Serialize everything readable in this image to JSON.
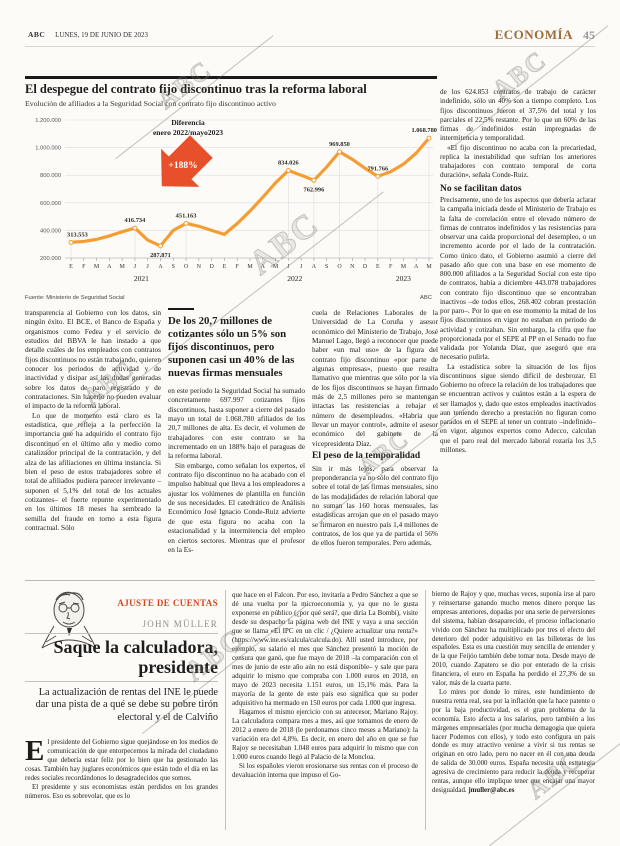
{
  "header": {
    "paper": "ABC",
    "date": "LUNES, 19 DE JUNIO DE 2023",
    "section": "ECONOMÍA",
    "page": "45",
    "section_color": "#9C6F3F"
  },
  "watermark": {
    "text": "ABC"
  },
  "chart_data": {
    "type": "line",
    "title": "El despegue del contrato fijo discontinuo tras la reforma laboral",
    "subtitle": "Evolución de afiliados a la Seguridad Social con contrato fijo discontinuo activo",
    "source": "Fuente: Ministerio de Seguridad Social",
    "credit": "ABC",
    "line_color": "#F59D33",
    "arrow_color": "#E8502B",
    "ylim": [
      200000,
      1200000
    ],
    "yticks": [
      "1.200.000",
      "1.000.000",
      "800.000",
      "600.000",
      "400.000",
      "200.000"
    ],
    "months": [
      "E",
      "F",
      "M",
      "A",
      "M",
      "J",
      "J",
      "A",
      "S",
      "O",
      "N",
      "D",
      "E",
      "F",
      "M",
      "A",
      "M",
      "J",
      "J",
      "A",
      "S",
      "O",
      "N",
      "D",
      "E",
      "F",
      "M",
      "A",
      "M"
    ],
    "values": [
      313553,
      320000,
      335000,
      360000,
      390000,
      416734,
      330000,
      287871,
      400000,
      451163,
      430000,
      400000,
      371000,
      450000,
      540000,
      640000,
      745000,
      834026,
      800000,
      762996,
      860000,
      969850,
      915000,
      850000,
      791766,
      825000,
      880000,
      960000,
      1068780
    ],
    "years": [
      {
        "label": "2021",
        "start": 0,
        "end": 11
      },
      {
        "label": "2022",
        "start": 12,
        "end": 23
      },
      {
        "label": "2023",
        "start": 24,
        "end": 28
      }
    ],
    "labeled_points": [
      {
        "i": 0,
        "label": "313.553",
        "pos": "above"
      },
      {
        "i": 5,
        "label": "416.734",
        "pos": "above"
      },
      {
        "i": 7,
        "label": "287.871",
        "pos": "below"
      },
      {
        "i": 9,
        "label": "451.163",
        "pos": "above"
      },
      {
        "i": 17,
        "label": "834.026",
        "pos": "above"
      },
      {
        "i": 19,
        "label": "762.996",
        "pos": "below"
      },
      {
        "i": 21,
        "label": "969.850",
        "pos": "above"
      },
      {
        "i": 24,
        "label": "791.766",
        "pos": "above"
      },
      {
        "i": 28,
        "label": "1.068.780",
        "pos": "above"
      }
    ],
    "annotation": {
      "title": "Diferencia",
      "subtitle": "enero 2022/mayo2023",
      "value": "+188%"
    }
  },
  "article": {
    "col1": {
      "p1": "transparencia al Gobierno con los datos, sin ningún éxito. El BCE, el Banco de España y organismos como Fedea y el servicio de estudios del BBVA le han instado a que detalle cuáles de los empleados con contratos fijos discontinuos no están trabajando, quieren conocer los periodos de actividad y de inactividad y disipar así las dudas generadas sobre los datos de paro registrado y de contrataciones. Sin hacerlo no pueden evaluar el impacto de la reforma laboral.",
      "p2": "Lo que de momento está claro es la estadística, que refleja a la perfección la importancia que ha adquirido el contrato fijo discontinuo en el último año y medio como catalizador principal de la contratación, y del alza de las afiliaciones en última instancia. Si bien el peso de estos trabajadores sobre el total de afiliados pudiera parecer irrelevante –suponen el 5,1% del total de los actuales cotizantes– el fuerte repunte experimentado en los últimos 18 meses ha sembrado la semilla del fraude en torno a esta figura contractual. Sólo"
    },
    "col2": {
      "quote": "De los 20,7 millones de cotizantes sólo un 5% son fijos discontinuos, pero suponen casi un 40% de las nuevas firmas mensuales",
      "p1": "en este periodo la Seguridad Social ha sumado concretamente 697.997 cotizantes fijos discontinuos, hasta suponer a cierre del pasado mayo un total de 1.068.780 afiliados de los 20,7 millones de alta. Es decir, el volumen de trabajadores con este contrato se ha incrementado en un 188% bajo el paraguas de la reforma laboral.",
      "p2": "Sin embargo, como señalan los expertos, el contrato fijo discontinuo no ha acabado con el impulso habitual que lleva a los empleadores a ajustar los volúmenes de plantilla en función de sus necesidades. El catedrático de Análisis Económico José Ignacio Conde-Ruiz advierte de que esta figura no acaba con la estacionalidad y la intermitencia del empleo en ciertos sectores. Mientras que el profesor en la Es-"
    },
    "col3": {
      "p1": "cuela de Relaciones Laborales de la Universidad de La Coruña y asesor económico del Ministerio de Trabajo, José Manuel Lago, llegó a reconocer que puede haber «un mal uso» de la figura del contrato fijo discontinuo «por parte de algunas empresas», puesto que resulta llamativo que mientras que sólo por la vía de los fijos discontinuos se hayan firmado más de 2,5 millones pero se mantengan intactas las resistencias a rebajar el número de desempleados. «Habría que llevar un mayor control», admite el asesor económico del gabinete de la vicepresidenta Díaz.",
      "subhead": "El peso de la temporalidad",
      "p2": "Sin ir más lejos, para observar la preponderancia ya no sólo del contrato fijo sobre el total de las firmas mensuales, sino de las modalidades de relación laboral que no suman las 160 horas mensuales, las estadísticas arrojan que en el pasado mayo se firmaron en nuestro país 1,4 millones de contratos, de los que ya de partida el 56% de ellos fueron temporales. Pero además,"
    },
    "col4": {
      "p1": "de los 624.853 contratos de trabajo de carácter indefinido, sólo un 40% son a tiempo completo. Los fijos discontinuos fueron el 37,5% del total y los parciales el 22,5% restante. Por lo que un 60% de las firmas de indefinidos están impregnadas de intermitencia y temporalidad.",
      "p2": "«El fijo discontinuo no acaba con la precariedad, replica la inestabilidad que sufrían los anteriores trabajadores con contrato temporal de corta duración», señala Conde-Ruiz.",
      "subhead": "No se facilitan datos",
      "p3": "Precisamente, uno de los aspectos que debería aclarar la campaña iniciada desde el Ministerio de Trabajo es la falta de correlación entre el elevado número de firmas de contratos indefinidos y las resistencias para observar una caída proporcional del desempleo, o un incremento acorde por el lado de la contratación. Como único dato, el Gobierno asumió a cierre del pasado año que con una base en ese momento de 800.000 afiliados a la Seguridad Social con este tipo de contratos, había a diciembre 443.078 trabajadores con contrato fijo discontinuo que se encontraban inactivos –de todos ellos, 268.402 cobran prestación por paro–. Por lo que en ese momento la mitad de los fijos discontinuos en vigor no estaban en periodo de actividad y cotizaban. Sin embargo, la cifra que fue proporcionada por el SEPE al PP en el Senado no fue validada por Yolanda Díaz, que aseguró que era necesario pulirla.",
      "p4": "La estadística sobre la situación de los fijos discontinuos sigue siendo difícil de desbrozar. El Gobierno no ofrece la relación de los trabajadores que se encuentran activos y cuántos están a la espera de ser llamados y, dado que estos empleados inactivados aun teniendo derecho a prestación no figuran como parados en el SEPE al tener un contrato –indefinido– en vigor, algunos expertos como Adecco, calculan que el paro real del mercado laboral rozaría los 3,5 millones."
    }
  },
  "opinion": {
    "kicker": "AJUSTE DE CUENTAS",
    "kicker_color": "#D0491F",
    "author": "JOHN MÜLLER",
    "headline": "Saque la calculadora, presidente",
    "deck": "La actualización de rentas del INE le puede dar una pista de a qué se debe su pobre tirón electoral y el de Calviño",
    "col1": {
      "dropcap": "E",
      "p1_rest": "l presidente del Gobierno sigue quejándose en los medios de comunicación de que entorpecemos la mirada del ciudadano que debería estar feliz por lo bien que ha gestionado las cosas. También hay juglares económicos que están todo el día en las redes sociales recordándonos lo desagradecidos que somos.",
      "p2": "El presidente y sus economistas están perdidos en los grandes números. Eso es sobrevolar, que es lo"
    },
    "col2": {
      "p1": "que hace en el Falcon. Por eso, invitaría a Pedro Sánchez a que se dé una vuelta por la microeconomía y, ya que no le gusta exponerse en público (¿por qué será?, que diría La Bombi), visite desde su despacho la página web del INE y vaya a una sección que se llama «El IPC en un clic / ¿Quiere actualizar una renta?» (https://www.ine.es/calcula/calcula.do). Allí usted introduce, por ejemplo, su salario el mes que Sánchez presentó la moción de censura que ganó, que fue mayo de 2018 –la comparación con el mes de junio de este año aún no está disponible– y sale que para adquirir lo mismo que compraba con 1.000 euros en 2018, en mayo de 2023 necesita 1.151 euros, un 15,1% más. Para la mayoría de la gente de este país eso significa que su poder adquisitivo ha mermado en 150 euros por cada 1.000 que ingresa.",
      "p2": "Hagamos el mismo ejercicio con su antecesor, Mariano Rajoy. La calculadora compara mes a mes, así que tomamos de enero de 2012 a enero de 2018 (le perdonamos cinco meses a Mariano): la variación era del 4,8%. Es decir, en enero del año en que se fue Rajoy se necesitaban 1.048 euros para adquirir lo mismo que con 1.000 euros cuando llegó al Palacio de la Moncloa.",
      "p3": "Si los españoles vieron erosionarse sus rentas con el proceso de devaluación interna que impuso el Go-"
    },
    "col3": {
      "p1": "bierno de Rajoy y que, muchas veces, suponía irse al paro y reinsertarse ganando mucho menos dinero porque las empresas anteriores, dopadas por una serie de perversiones del sistema, habían desaparecido, el proceso inflacionario vivido con Sánchez ha multiplicado por tres el efecto del deterioro del poder adquisitivo en las billeteras de los españoles. Esta es una cuestión muy sencilla de entender y de la que Feijóo también debe tomar nota. Desde mayo de 2010, cuando Zapatero se dio por enterado de la crisis financiera, el euro en España ha perdido el 27,3% de su valor, más de la cuarta parte.",
      "p2": "Lo mires por donde lo mires, este hundimiento de nuestra renta real, sea por la inflación que la hace patente o por la baja productividad, es el gran problema de la economía. Esto afecta a los salarios, pero también a los márgenes empresariales (por mucha demagogia que quiera hacer Podemos con ellos), y todo esto configura un país donde es muy atractivo venirse a vivir si tus rentas se originan en otro lado, pero no nacer en él con una deuda de salida de 30.000 euros. España necesita una estrategia agresiva de crecimiento para reducir la deuda y recuperar rentas, aunque ello implique tener que encajar una mayor desigualdad. "
    },
    "email": "jmuller@abc.es"
  }
}
